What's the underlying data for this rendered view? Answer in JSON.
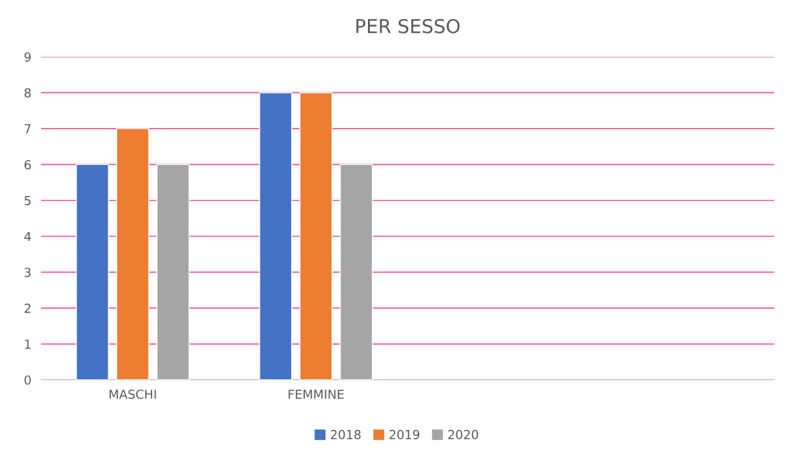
{
  "chart_data": {
    "type": "bar",
    "title": "PER SESSO",
    "categories": [
      "MASCHI",
      "FEMMINE",
      null,
      null
    ],
    "series": [
      {
        "name": "2018",
        "color": "#4472c4",
        "values": [
          6,
          8,
          null,
          null
        ]
      },
      {
        "name": "2019",
        "color": "#ed7d31",
        "values": [
          7,
          8,
          null,
          null
        ]
      },
      {
        "name": "2020",
        "color": "#a5a5a5",
        "values": [
          6,
          6,
          null,
          null
        ]
      }
    ],
    "ylim": [
      0,
      9
    ],
    "yticks": [
      0,
      1,
      2,
      3,
      4,
      5,
      6,
      7,
      8,
      9
    ],
    "grid": "y",
    "legend": "bottom"
  }
}
